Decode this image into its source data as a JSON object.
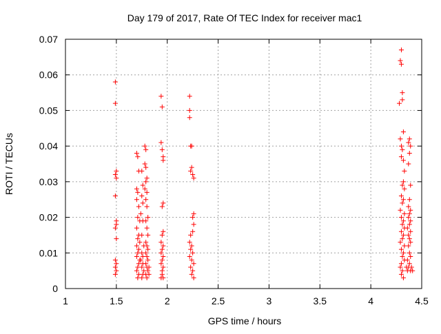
{
  "chart_data": {
    "type": "scatter",
    "title": "Day 179 of 2017, Rate Of TEC Index for receiver mac1",
    "xlabel": "GPS time / hours",
    "ylabel": "ROTI / TECUs",
    "xlim": [
      1,
      4.5
    ],
    "ylim": [
      0,
      0.07
    ],
    "x_ticks": [
      1,
      1.5,
      2,
      2.5,
      3,
      3.5,
      4,
      4.5
    ],
    "x_tick_labels": [
      "1",
      "1.5",
      "2",
      "2.5",
      "3",
      "3.5",
      "4",
      "4.5"
    ],
    "y_ticks": [
      0,
      0.01,
      0.02,
      0.03,
      0.04,
      0.05,
      0.06,
      0.07
    ],
    "y_tick_labels": [
      "0",
      "0.01",
      "0.02",
      "0.03",
      "0.04",
      "0.05",
      "0.06",
      "0.07"
    ],
    "grid": true,
    "marker": "+",
    "series": [
      {
        "name": "ROTI",
        "color": "#ff0000",
        "points": [
          [
            1.49,
            0.058
          ],
          [
            1.49,
            0.052
          ],
          [
            1.5,
            0.033
          ],
          [
            1.49,
            0.032
          ],
          [
            1.5,
            0.031
          ],
          [
            1.49,
            0.026
          ],
          [
            1.5,
            0.019
          ],
          [
            1.5,
            0.018
          ],
          [
            1.49,
            0.017
          ],
          [
            1.5,
            0.014
          ],
          [
            1.49,
            0.008
          ],
          [
            1.5,
            0.007
          ],
          [
            1.49,
            0.006
          ],
          [
            1.5,
            0.005
          ],
          [
            1.49,
            0.004
          ],
          [
            1.7,
            0.038
          ],
          [
            1.71,
            0.037
          ],
          [
            1.72,
            0.033
          ],
          [
            1.7,
            0.028
          ],
          [
            1.71,
            0.027
          ],
          [
            1.7,
            0.025
          ],
          [
            1.72,
            0.023
          ],
          [
            1.71,
            0.02
          ],
          [
            1.73,
            0.019
          ],
          [
            1.7,
            0.017
          ],
          [
            1.72,
            0.015
          ],
          [
            1.71,
            0.014
          ],
          [
            1.73,
            0.013
          ],
          [
            1.7,
            0.012
          ],
          [
            1.72,
            0.011
          ],
          [
            1.71,
            0.01
          ],
          [
            1.7,
            0.009
          ],
          [
            1.73,
            0.008
          ],
          [
            1.72,
            0.007
          ],
          [
            1.71,
            0.006
          ],
          [
            1.7,
            0.005
          ],
          [
            1.72,
            0.004
          ],
          [
            1.71,
            0.003
          ],
          [
            1.75,
            0.033
          ],
          [
            1.76,
            0.029
          ],
          [
            1.75,
            0.026
          ],
          [
            1.76,
            0.024
          ],
          [
            1.74,
            0.021
          ],
          [
            1.76,
            0.019
          ],
          [
            1.75,
            0.015
          ],
          [
            1.77,
            0.012
          ],
          [
            1.75,
            0.01
          ],
          [
            1.76,
            0.009
          ],
          [
            1.74,
            0.008
          ],
          [
            1.76,
            0.007
          ],
          [
            1.75,
            0.006
          ],
          [
            1.77,
            0.005
          ],
          [
            1.76,
            0.004
          ],
          [
            1.75,
            0.003
          ],
          [
            1.78,
            0.04
          ],
          [
            1.79,
            0.039
          ],
          [
            1.78,
            0.035
          ],
          [
            1.79,
            0.034
          ],
          [
            1.8,
            0.031
          ],
          [
            1.79,
            0.03
          ],
          [
            1.78,
            0.028
          ],
          [
            1.8,
            0.027
          ],
          [
            1.79,
            0.025
          ],
          [
            1.8,
            0.023
          ],
          [
            1.81,
            0.02
          ],
          [
            1.79,
            0.019
          ],
          [
            1.8,
            0.017
          ],
          [
            1.81,
            0.015
          ],
          [
            1.79,
            0.013
          ],
          [
            1.8,
            0.012
          ],
          [
            1.81,
            0.011
          ],
          [
            1.79,
            0.01
          ],
          [
            1.8,
            0.009
          ],
          [
            1.81,
            0.008
          ],
          [
            1.79,
            0.007
          ],
          [
            1.8,
            0.006
          ],
          [
            1.81,
            0.005
          ],
          [
            1.79,
            0.004
          ],
          [
            1.8,
            0.003
          ],
          [
            1.82,
            0.006
          ],
          [
            1.82,
            0.004
          ],
          [
            1.94,
            0.054
          ],
          [
            1.95,
            0.051
          ],
          [
            1.94,
            0.041
          ],
          [
            1.95,
            0.039
          ],
          [
            1.96,
            0.037
          ],
          [
            1.96,
            0.036
          ],
          [
            1.96,
            0.024
          ],
          [
            1.95,
            0.023
          ],
          [
            1.96,
            0.016
          ],
          [
            1.95,
            0.015
          ],
          [
            1.94,
            0.013
          ],
          [
            1.96,
            0.012
          ],
          [
            1.95,
            0.011
          ],
          [
            1.94,
            0.01
          ],
          [
            1.96,
            0.009
          ],
          [
            1.95,
            0.008
          ],
          [
            1.94,
            0.007
          ],
          [
            1.96,
            0.006
          ],
          [
            1.95,
            0.005
          ],
          [
            1.95,
            0.004
          ],
          [
            1.94,
            0.003
          ],
          [
            1.96,
            0.003
          ],
          [
            2.22,
            0.054
          ],
          [
            2.22,
            0.05
          ],
          [
            2.22,
            0.048
          ],
          [
            2.24,
            0.04
          ],
          [
            2.23,
            0.04
          ],
          [
            2.24,
            0.034
          ],
          [
            2.23,
            0.033
          ],
          [
            2.25,
            0.032
          ],
          [
            2.26,
            0.031
          ],
          [
            2.26,
            0.021
          ],
          [
            2.25,
            0.02
          ],
          [
            2.26,
            0.018
          ],
          [
            2.25,
            0.016
          ],
          [
            2.23,
            0.015
          ],
          [
            2.22,
            0.013
          ],
          [
            2.24,
            0.012
          ],
          [
            2.23,
            0.011
          ],
          [
            2.25,
            0.01
          ],
          [
            2.22,
            0.009
          ],
          [
            2.24,
            0.008
          ],
          [
            2.26,
            0.007
          ],
          [
            2.23,
            0.006
          ],
          [
            2.25,
            0.005
          ],
          [
            2.24,
            0.004
          ],
          [
            2.26,
            0.003
          ],
          [
            4.3,
            0.067
          ],
          [
            4.29,
            0.064
          ],
          [
            4.3,
            0.063
          ],
          [
            4.31,
            0.055
          ],
          [
            4.31,
            0.053
          ],
          [
            4.28,
            0.052
          ],
          [
            4.32,
            0.044
          ],
          [
            4.29,
            0.042
          ],
          [
            4.3,
            0.04
          ],
          [
            4.31,
            0.039
          ],
          [
            4.3,
            0.037
          ],
          [
            4.32,
            0.036
          ],
          [
            4.33,
            0.033
          ],
          [
            4.32,
            0.03
          ],
          [
            4.31,
            0.029
          ],
          [
            4.33,
            0.028
          ],
          [
            4.3,
            0.026
          ],
          [
            4.32,
            0.025
          ],
          [
            4.31,
            0.024
          ],
          [
            4.29,
            0.022
          ],
          [
            4.33,
            0.021
          ],
          [
            4.3,
            0.02
          ],
          [
            4.32,
            0.019
          ],
          [
            4.31,
            0.018
          ],
          [
            4.33,
            0.017
          ],
          [
            4.3,
            0.016
          ],
          [
            4.32,
            0.015
          ],
          [
            4.31,
            0.014
          ],
          [
            4.29,
            0.013
          ],
          [
            4.33,
            0.012
          ],
          [
            4.3,
            0.011
          ],
          [
            4.32,
            0.01
          ],
          [
            4.31,
            0.009
          ],
          [
            4.33,
            0.008
          ],
          [
            4.3,
            0.007
          ],
          [
            4.29,
            0.006
          ],
          [
            4.31,
            0.005
          ],
          [
            4.3,
            0.004
          ],
          [
            4.32,
            0.003
          ],
          [
            4.38,
            0.042
          ],
          [
            4.37,
            0.041
          ],
          [
            4.39,
            0.04
          ],
          [
            4.38,
            0.038
          ],
          [
            4.37,
            0.035
          ],
          [
            4.39,
            0.029
          ],
          [
            4.38,
            0.025
          ],
          [
            4.37,
            0.023
          ],
          [
            4.39,
            0.022
          ],
          [
            4.38,
            0.021
          ],
          [
            4.37,
            0.02
          ],
          [
            4.39,
            0.019
          ],
          [
            4.38,
            0.018
          ],
          [
            4.36,
            0.017
          ],
          [
            4.39,
            0.016
          ],
          [
            4.37,
            0.015
          ],
          [
            4.38,
            0.014
          ],
          [
            4.39,
            0.013
          ],
          [
            4.37,
            0.012
          ],
          [
            4.38,
            0.01
          ],
          [
            4.39,
            0.009
          ],
          [
            4.36,
            0.008
          ],
          [
            4.38,
            0.007
          ],
          [
            4.37,
            0.006
          ],
          [
            4.39,
            0.005
          ],
          [
            4.4,
            0.006
          ],
          [
            4.41,
            0.005
          ],
          [
            4.36,
            0.005
          ],
          [
            4.35,
            0.006
          ]
        ]
      }
    ]
  }
}
